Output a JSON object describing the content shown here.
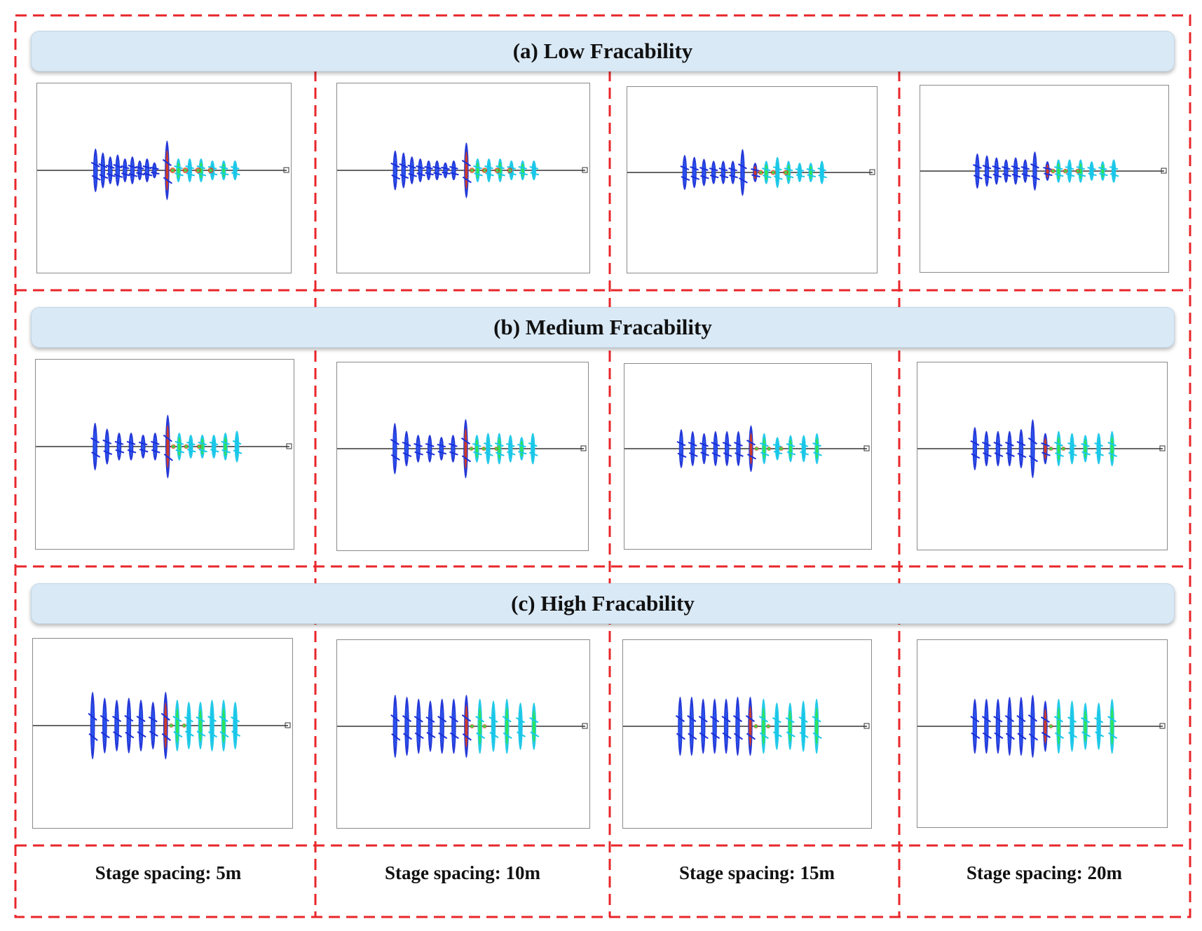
{
  "rows": [
    {
      "title": "(a) Low Fracability",
      "panels": [
        {
          "stages": 12,
          "left_lengths": [
            0.55,
            0.45,
            0.35,
            0.4,
            0.3,
            0.35,
            0.25,
            0.3,
            0.2
          ],
          "right_lengths": [
            0.75,
            0.3,
            0.3,
            0.3,
            0.25,
            0.25,
            0.25
          ],
          "hot_intensity": 0.95
        },
        {
          "stages": 11,
          "left_lengths": [
            0.5,
            0.45,
            0.35,
            0.3,
            0.25,
            0.25,
            0.2,
            0.25
          ],
          "right_lengths": [
            0.7,
            0.3,
            0.3,
            0.3,
            0.25,
            0.25,
            0.25
          ],
          "hot_intensity": 0.9
        },
        {
          "stages": 10,
          "left_lengths": [
            0.45,
            0.4,
            0.35,
            0.3,
            0.3,
            0.3,
            0.6
          ],
          "right_lengths": [
            0.25,
            0.3,
            0.4,
            0.3,
            0.25,
            0.25,
            0.3
          ],
          "hot_intensity": 0.85
        },
        {
          "stages": 9,
          "left_lengths": [
            0.45,
            0.4,
            0.35,
            0.3,
            0.35,
            0.3,
            0.5
          ],
          "right_lengths": [
            0.25,
            0.3,
            0.3,
            0.3,
            0.25,
            0.25,
            0.3
          ],
          "hot_intensity": 0.8
        }
      ]
    },
    {
      "title": "(b) Medium Fracability",
      "panels": [
        {
          "stages": 12,
          "left_lengths": [
            0.6,
            0.45,
            0.35,
            0.35,
            0.3,
            0.35
          ],
          "right_lengths": [
            0.8,
            0.35,
            0.3,
            0.3,
            0.3,
            0.35,
            0.4
          ],
          "hot_intensity": 0.75
        },
        {
          "stages": 11,
          "left_lengths": [
            0.65,
            0.45,
            0.35,
            0.35,
            0.3,
            0.35
          ],
          "right_lengths": [
            0.75,
            0.35,
            0.4,
            0.4,
            0.35,
            0.3,
            0.4
          ],
          "hot_intensity": 0.7
        },
        {
          "stages": 10,
          "left_lengths": [
            0.5,
            0.45,
            0.4,
            0.45,
            0.45,
            0.45
          ],
          "right_lengths": [
            0.6,
            0.4,
            0.3,
            0.35,
            0.35,
            0.4
          ],
          "hot_intensity": 0.65
        },
        {
          "stages": 9,
          "left_lengths": [
            0.55,
            0.45,
            0.45,
            0.45,
            0.5,
            0.75
          ],
          "right_lengths": [
            0.4,
            0.45,
            0.4,
            0.35,
            0.4,
            0.45
          ],
          "hot_intensity": 0.6
        }
      ]
    },
    {
      "title": "(c) High Fracability",
      "panels": [
        {
          "stages": 12,
          "left_lengths": [
            0.85,
            0.7,
            0.65,
            0.7,
            0.65,
            0.6
          ],
          "right_lengths": [
            0.85,
            0.65,
            0.6,
            0.6,
            0.65,
            0.65,
            0.6
          ],
          "hot_intensity": 0.5
        },
        {
          "stages": 11,
          "left_lengths": [
            0.8,
            0.75,
            0.7,
            0.65,
            0.7,
            0.7
          ],
          "right_lengths": [
            0.8,
            0.7,
            0.65,
            0.7,
            0.6,
            0.6
          ],
          "hot_intensity": 0.45
        },
        {
          "stages": 10,
          "left_lengths": [
            0.75,
            0.75,
            0.7,
            0.7,
            0.7,
            0.75
          ],
          "right_lengths": [
            0.75,
            0.7,
            0.6,
            0.6,
            0.65,
            0.7
          ],
          "hot_intensity": 0.4
        },
        {
          "stages": 9,
          "left_lengths": [
            0.7,
            0.7,
            0.7,
            0.75,
            0.75,
            0.8
          ],
          "right_lengths": [
            0.65,
            0.7,
            0.65,
            0.6,
            0.6,
            0.7
          ],
          "hot_intensity": 0.35
        }
      ]
    }
  ],
  "captions": [
    "Stage spacing: 5m",
    "Stage spacing: 10m",
    "Stage spacing: 15m",
    "Stage spacing: 20m"
  ],
  "colors": {
    "dash": "#e8262a",
    "banner_fill": "#d9e9f6",
    "fracture_low": "#1a2fd6",
    "fracture_mid": "#19c7e8",
    "fracture_high": "#2de84a",
    "fracture_peak": "#e23b14",
    "wellbore": "#333333"
  }
}
